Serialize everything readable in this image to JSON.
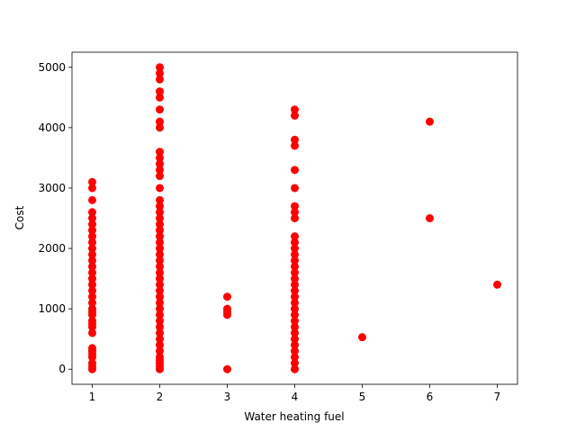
{
  "chart_data": {
    "type": "scatter",
    "xlabel": "Water heating fuel",
    "ylabel": "Cost",
    "color": "#ff0000",
    "xlim": [
      0.7,
      7.3
    ],
    "ylim": [
      -250,
      5250
    ],
    "xticks": [
      1,
      2,
      3,
      4,
      5,
      6,
      7
    ],
    "yticks": [
      0,
      1000,
      2000,
      3000,
      4000,
      5000
    ],
    "x": [
      1,
      1,
      1,
      1,
      1,
      1,
      1,
      1,
      1,
      1,
      1,
      1,
      1,
      1,
      1,
      1,
      1,
      1,
      1,
      1,
      1,
      1,
      1,
      1,
      1,
      1,
      1,
      1,
      1,
      1,
      1,
      1,
      1,
      2,
      2,
      2,
      2,
      2,
      2,
      2,
      2,
      2,
      2,
      2,
      2,
      2,
      2,
      2,
      2,
      2,
      2,
      2,
      2,
      2,
      2,
      2,
      2,
      2,
      2,
      2,
      2,
      2,
      2,
      2,
      2,
      2,
      2,
      2,
      2,
      2,
      2,
      2,
      2,
      2,
      2,
      2,
      2,
      2,
      3,
      3,
      3,
      3,
      3,
      4,
      4,
      4,
      4,
      4,
      4,
      4,
      4,
      4,
      4,
      4,
      4,
      4,
      4,
      4,
      4,
      4,
      4,
      4,
      4,
      4,
      4,
      4,
      4,
      4,
      4,
      4,
      4,
      4,
      4,
      4,
      4,
      5,
      6,
      6,
      7
    ],
    "y": [
      0,
      50,
      100,
      200,
      250,
      300,
      350,
      600,
      700,
      750,
      800,
      900,
      950,
      1000,
      1100,
      1200,
      1300,
      1400,
      1500,
      1600,
      1700,
      1800,
      1900,
      2000,
      2100,
      2200,
      2300,
      2400,
      2500,
      2600,
      2800,
      3000,
      3100,
      0,
      50,
      100,
      150,
      200,
      300,
      400,
      500,
      600,
      700,
      800,
      900,
      1000,
      1100,
      1200,
      1300,
      1400,
      1500,
      1600,
      1700,
      1800,
      1900,
      2000,
      2100,
      2200,
      2300,
      2400,
      2500,
      2600,
      2700,
      2800,
      3000,
      3200,
      3300,
      3400,
      3500,
      3600,
      4000,
      4100,
      4300,
      4500,
      4600,
      4800,
      4900,
      5000,
      0,
      900,
      950,
      1000,
      1200,
      0,
      100,
      200,
      300,
      400,
      500,
      600,
      700,
      800,
      900,
      1000,
      1100,
      1200,
      1300,
      1400,
      1500,
      1600,
      1700,
      1800,
      1900,
      2000,
      2100,
      2200,
      2500,
      2600,
      2700,
      3000,
      3300,
      3700,
      3800,
      4200,
      4300,
      530,
      2500,
      4100,
      1400
    ]
  }
}
